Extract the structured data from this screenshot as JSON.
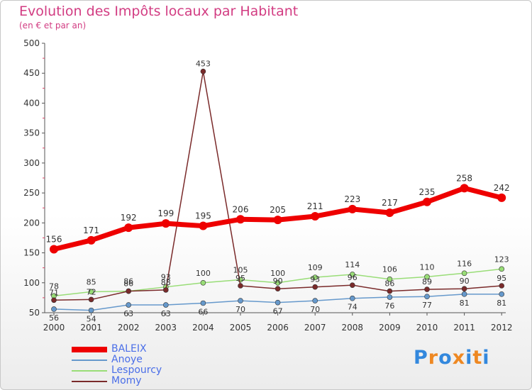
{
  "chart_data": {
    "type": "line",
    "title": "Evolution des Impôts locaux par Habitant",
    "subtitle": "(en € et par an)",
    "xlabel": "",
    "ylabel": "",
    "ylim": [
      50,
      500
    ],
    "yticks": [
      50,
      100,
      150,
      200,
      250,
      300,
      350,
      400,
      450,
      500
    ],
    "grid": false,
    "legend_position": "bottom-left",
    "x": [
      "2000",
      "2001",
      "2002",
      "2003",
      "2004",
      "2005",
      "2006",
      "2007",
      "2008",
      "2009",
      "2010",
      "2011",
      "2012"
    ],
    "series": [
      {
        "name": "BALEIX",
        "color": "#ee0000",
        "values": [
          156,
          171,
          192,
          199,
          195,
          206,
          205,
          211,
          223,
          217,
          235,
          258,
          242
        ]
      },
      {
        "name": "Anoye",
        "color": "#6699cc",
        "values": [
          56,
          54,
          63,
          63,
          66,
          70,
          67,
          70,
          74,
          76,
          77,
          81,
          81
        ]
      },
      {
        "name": "Lespourcy",
        "color": "#99dd77",
        "values": [
          78,
          85,
          86,
          93,
          100,
          105,
          100,
          109,
          114,
          106,
          110,
          116,
          123
        ]
      },
      {
        "name": "Momy",
        "color": "#7a2a2a",
        "values": [
          71,
          72,
          86,
          88,
          453,
          95,
          90,
          93,
          96,
          86,
          89,
          90,
          95
        ]
      }
    ]
  },
  "logo": {
    "text": "Proxiti",
    "colors": [
      "#3388dd",
      "#ee8822",
      "#3388dd",
      "#ee8822",
      "#3388dd",
      "#ee8822",
      "#3388dd"
    ]
  }
}
